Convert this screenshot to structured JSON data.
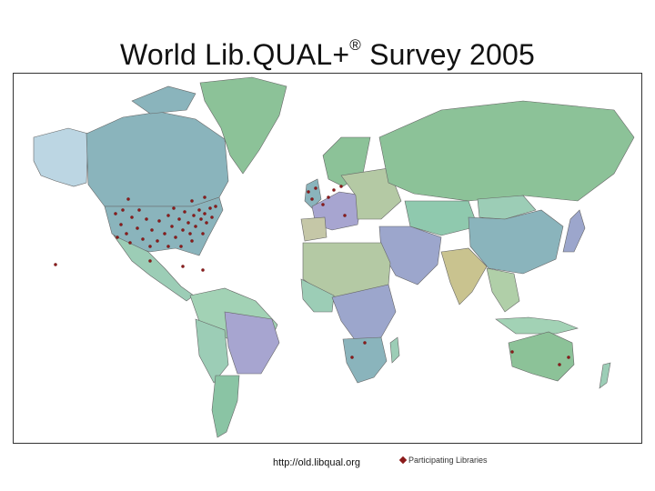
{
  "slide": {
    "title": "World Lib.QUAL+",
    "title_mark": "®",
    "title_suffix": " Survey 2005"
  },
  "map": {
    "source_url": "http://old.libqual.org",
    "legend_label": "Participating Libraries",
    "colors": {
      "marker": "#8b1a1a",
      "ocean": "#ffffff",
      "border": "#666666"
    }
  }
}
